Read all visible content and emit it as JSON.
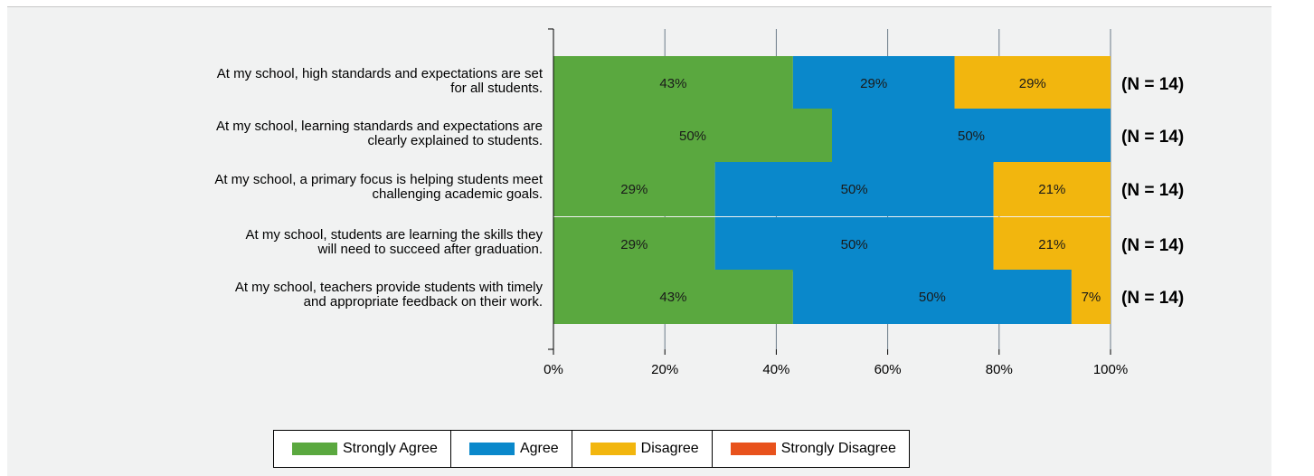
{
  "chart_data": {
    "type": "bar",
    "orientation": "horizontal",
    "stacked": true,
    "categories": [
      "At my school, high standards and expectations are set for all students.",
      "At my school, learning standards and expectations are clearly explained to students.",
      "At my school, a primary focus is helping students meet challenging academic goals.",
      "At my school, students are learning the skills they will need to succeed after graduation.",
      "At my school, teachers provide students with timely and appropriate feedback on their work."
    ],
    "category_lines": [
      [
        "At my school, high standards and expectations are set",
        "for all students."
      ],
      [
        "At my school, learning standards and expectations are",
        "clearly explained to students."
      ],
      [
        "At my school, a primary focus is helping students meet",
        "challenging academic goals."
      ],
      [
        "At my school, students are learning the skills they",
        "will need to succeed after graduation."
      ],
      [
        "At my school, teachers provide students with timely",
        "and appropriate feedback on their work."
      ]
    ],
    "series": [
      {
        "name": "Strongly Agree",
        "color": "#5aa83f",
        "values": [
          43,
          50,
          29,
          29,
          43
        ]
      },
      {
        "name": "Agree",
        "color": "#0a88cb",
        "values": [
          29,
          50,
          50,
          50,
          50
        ]
      },
      {
        "name": "Disagree",
        "color": "#f2b60e",
        "values": [
          29,
          0,
          21,
          21,
          7
        ]
      },
      {
        "name": "Strongly Disagree",
        "color": "#e8521c",
        "values": [
          0,
          0,
          0,
          0,
          0
        ]
      }
    ],
    "n_labels": [
      "(N = 14)",
      "(N = 14)",
      "(N = 14)",
      "(N = 14)",
      "(N = 14)"
    ],
    "xlim": [
      0,
      100
    ],
    "xticks": [
      "0%",
      "20%",
      "40%",
      "60%",
      "80%",
      "100%"
    ],
    "grid": true,
    "legend_position": "bottom"
  }
}
